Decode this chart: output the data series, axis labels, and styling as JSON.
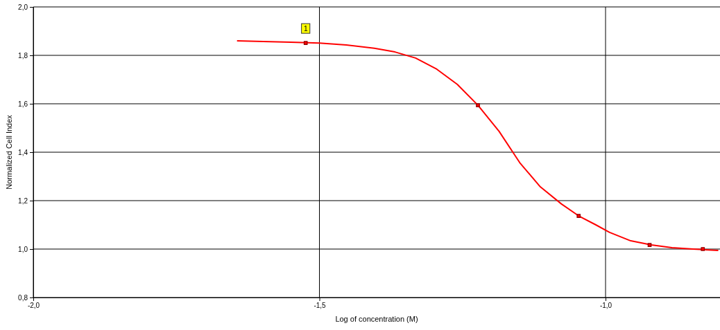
{
  "chart_data": {
    "type": "line",
    "xlabel": "Log of concentration (M)",
    "ylabel": "Normalized Cell Index",
    "xlim": [
      -2.0,
      -0.8
    ],
    "ylim": [
      0.8,
      2.0
    ],
    "xticks": [
      {
        "value": -2.0,
        "label": "-2,0"
      },
      {
        "value": -1.5,
        "label": "-1,5"
      },
      {
        "value": -1.0,
        "label": "-1,0"
      }
    ],
    "yticks": [
      {
        "value": 0.8,
        "label": "0,8"
      },
      {
        "value": 1.0,
        "label": "1,0"
      },
      {
        "value": 1.2,
        "label": "1,2"
      },
      {
        "value": 1.4,
        "label": "1,4"
      },
      {
        "value": 1.6,
        "label": "1,6"
      },
      {
        "value": 1.8,
        "label": "1,8"
      },
      {
        "value": 2.0,
        "label": "2,0"
      }
    ],
    "grid": true,
    "series": [
      {
        "type": "line",
        "color": "#ff0000",
        "marker": "none",
        "x": [
          -1.644,
          -1.598,
          -1.55,
          -1.5,
          -1.453,
          -1.404,
          -1.368,
          -1.332,
          -1.295,
          -1.259,
          -1.223,
          -1.186,
          -1.15,
          -1.114,
          -1.077,
          -1.047,
          -1.017,
          -0.993,
          -0.956,
          -0.92,
          -0.884,
          -0.847,
          -0.803
        ],
        "values": [
          1.86,
          1.857,
          1.854,
          1.851,
          1.843,
          1.829,
          1.814,
          1.789,
          1.743,
          1.68,
          1.594,
          1.486,
          1.357,
          1.257,
          1.186,
          1.137,
          1.1,
          1.069,
          1.034,
          1.017,
          1.006,
          1.0,
          0.994
        ]
      },
      {
        "type": "scatter",
        "color": "#8b0000",
        "marker": "square",
        "x": [
          -1.524,
          -1.223,
          -1.047,
          -0.923,
          -0.83
        ],
        "values": [
          1.851,
          1.594,
          1.137,
          1.017,
          1.0
        ]
      }
    ],
    "annotations": [
      {
        "text": "1",
        "x": -1.524,
        "y": 1.851
      }
    ]
  }
}
